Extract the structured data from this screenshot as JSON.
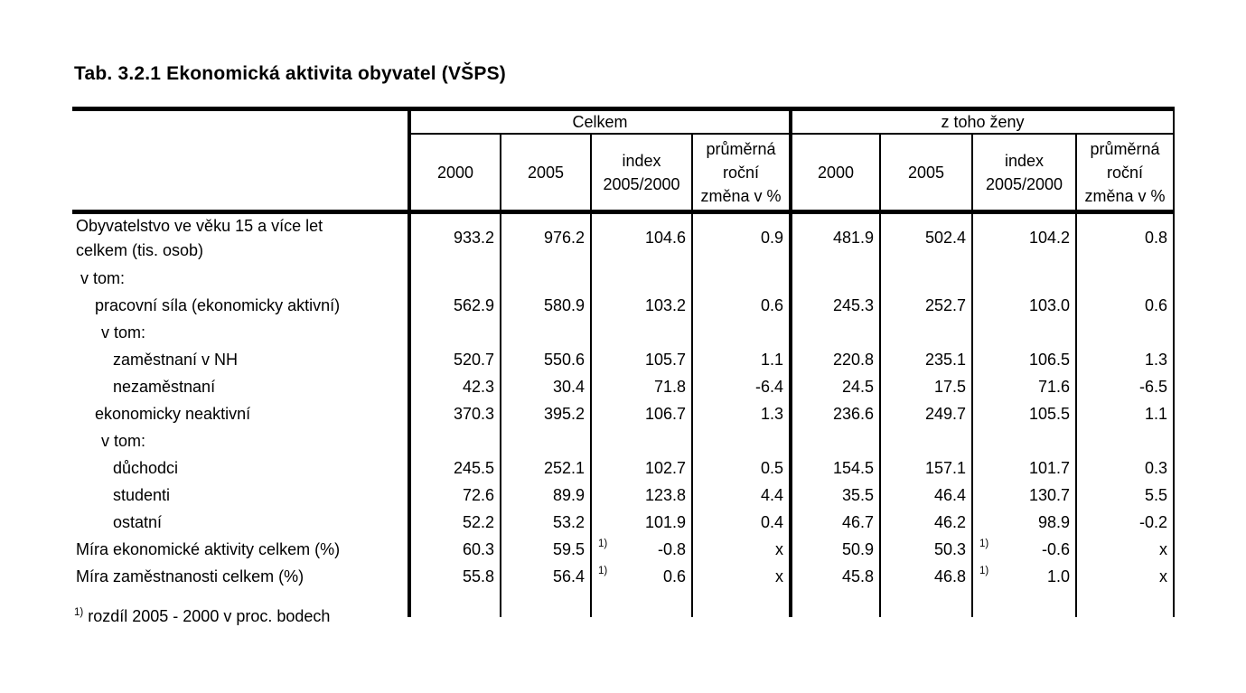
{
  "title": "Tab. 3.2.1 Ekonomická aktivita obyvatel (VŠPS)",
  "colors": {
    "text": "#000000",
    "background": "#ffffff",
    "rules": "#000000"
  },
  "table": {
    "header": {
      "groups": [
        {
          "label": "Celkem",
          "columns": [
            "2000",
            "2005",
            "index\n2005/2000",
            "průměrná\nroční\nzměna v %"
          ]
        },
        {
          "label": "z toho ženy",
          "columns": [
            "2000",
            "2005",
            "index\n2005/2000",
            "průměrná\nroční\nzměna v %"
          ]
        }
      ]
    },
    "rows": [
      {
        "label": "Obyvatelstvo ve věku 15 a více let",
        "label2": "celkem (tis. osob)",
        "bold": true,
        "tall": true,
        "indent": 0,
        "values": [
          "933.2",
          "976.2",
          "104.6",
          "0.9",
          "481.9",
          "502.4",
          "104.2",
          "0.8"
        ]
      },
      {
        "label": "v tom:",
        "indent": 1,
        "values": []
      },
      {
        "label": "pracovní síla (ekonomicky aktivní)",
        "indent": 2,
        "values": [
          "562.9",
          "580.9",
          "103.2",
          "0.6",
          "245.3",
          "252.7",
          "103.0",
          "0.6"
        ]
      },
      {
        "label": "v tom:",
        "indent": 3,
        "values": []
      },
      {
        "label": "zaměstnaní v NH",
        "indent": 4,
        "values": [
          "520.7",
          "550.6",
          "105.7",
          "1.1",
          "220.8",
          "235.1",
          "106.5",
          "1.3"
        ]
      },
      {
        "label": "nezaměstnaní",
        "indent": 4,
        "values": [
          "42.3",
          "30.4",
          "71.8",
          "-6.4",
          "24.5",
          "17.5",
          "71.6",
          "-6.5"
        ]
      },
      {
        "label": "ekonomicky neaktivní",
        "indent": 2,
        "values": [
          "370.3",
          "395.2",
          "106.7",
          "1.3",
          "236.6",
          "249.7",
          "105.5",
          "1.1"
        ]
      },
      {
        "label": "v tom:",
        "indent": 3,
        "values": []
      },
      {
        "label": "důchodci",
        "indent": 4,
        "values": [
          "245.5",
          "252.1",
          "102.7",
          "0.5",
          "154.5",
          "157.1",
          "101.7",
          "0.3"
        ]
      },
      {
        "label": "studenti",
        "indent": 4,
        "values": [
          "72.6",
          "89.9",
          "123.8",
          "4.4",
          "35.5",
          "46.4",
          "130.7",
          "5.5"
        ]
      },
      {
        "label": "ostatní",
        "indent": 4,
        "values": [
          "52.2",
          "53.2",
          "101.9",
          "0.4",
          "46.7",
          "46.2",
          "98.9",
          "-0.2"
        ]
      },
      {
        "label": "Míra ekonomické aktivity celkem (%)",
        "indent": 0,
        "values": [
          "60.3",
          "59.5",
          "-0.8",
          "x",
          "50.9",
          "50.3",
          "-0.6",
          "x"
        ],
        "notes": {
          "2": "1)",
          "6": "1)"
        }
      },
      {
        "label": "Míra zaměstnanosti celkem (%)",
        "indent": 0,
        "values": [
          "55.8",
          "56.4",
          "0.6",
          "x",
          "45.8",
          "46.8",
          "1.0",
          "x"
        ],
        "notes": {
          "2": "1)",
          "6": "1)"
        }
      }
    ],
    "footnote": {
      "mark": "1)",
      "text": "rozdíl 2005 - 2000 v proc. bodech"
    }
  }
}
